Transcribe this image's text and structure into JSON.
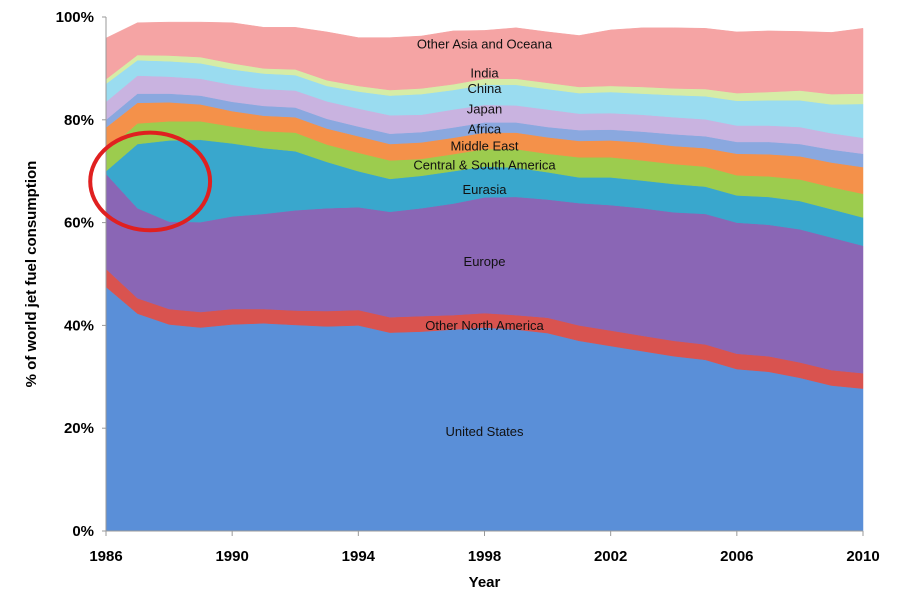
{
  "chart_data": {
    "type": "area",
    "stacked": true,
    "percent": true,
    "xlabel": "Year",
    "ylabel": "% of world jet fuel consumption",
    "x": [
      1986,
      1987,
      1988,
      1989,
      1990,
      1991,
      1992,
      1993,
      1994,
      1995,
      1996,
      1997,
      1998,
      1999,
      2000,
      2001,
      2002,
      2003,
      2004,
      2005,
      2006,
      2007,
      2008,
      2009,
      2010
    ],
    "x_ticks": [
      1986,
      1990,
      1994,
      1998,
      2002,
      2006,
      2010
    ],
    "x_tick_labels": [
      "1986",
      "1990",
      "1994",
      "1998",
      "2002",
      "2006",
      "2010"
    ],
    "y_ticks": [
      0,
      20,
      40,
      60,
      80,
      100
    ],
    "y_tick_labels": [
      "0%",
      "20%",
      "40%",
      "60%",
      "80%",
      "100%"
    ],
    "ylim": [
      0,
      100
    ],
    "grid": false,
    "series": [
      {
        "name": "United States",
        "color": "#5a8fd8",
        "values": [
          47.5,
          42.3,
          40.2,
          39.6,
          40.2,
          40.4,
          40.1,
          39.8,
          40.0,
          38.6,
          38.8,
          39.2,
          39.6,
          39.2,
          38.5,
          37.0,
          36.0,
          35.0,
          34.0,
          33.3,
          31.5,
          31.0,
          29.8,
          28.3,
          27.7
        ]
      },
      {
        "name": "Other North America",
        "color": "#d9534f",
        "values": [
          3.5,
          3.0,
          3.0,
          3.0,
          3.0,
          2.8,
          2.8,
          3.0,
          3.0,
          3.0,
          3.0,
          2.8,
          2.8,
          2.8,
          3.0,
          3.0,
          3.0,
          3.0,
          3.0,
          3.0,
          3.0,
          3.0,
          3.0,
          3.0,
          3.0
        ]
      },
      {
        "name": "Europe",
        "color": "#8a66b5",
        "values": [
          18.5,
          17.5,
          17.0,
          17.5,
          18.0,
          18.5,
          19.5,
          20.0,
          20.0,
          20.5,
          21.0,
          21.7,
          22.5,
          23.0,
          23.0,
          23.8,
          24.4,
          24.8,
          25.0,
          25.4,
          25.5,
          25.6,
          25.9,
          25.8,
          24.8
        ]
      },
      {
        "name": "Eurasia",
        "color": "#39a7cd",
        "values": [
          0.5,
          12.5,
          15.8,
          16.0,
          14.2,
          12.8,
          11.5,
          9.0,
          7.0,
          6.4,
          6.3,
          6.3,
          6.0,
          5.7,
          5.3,
          5.0,
          5.4,
          5.4,
          5.5,
          5.3,
          5.3,
          5.4,
          5.5,
          5.5,
          5.5
        ]
      },
      {
        "name": "Central & South America",
        "color": "#9ccc4e",
        "values": [
          4.0,
          4.0,
          3.7,
          3.6,
          3.3,
          3.3,
          3.6,
          3.4,
          3.6,
          3.6,
          3.3,
          3.3,
          3.4,
          3.6,
          3.6,
          3.9,
          3.9,
          3.9,
          3.9,
          3.9,
          3.9,
          4.0,
          4.2,
          4.3,
          4.6
        ]
      },
      {
        "name": "Middle East",
        "color": "#f4914a",
        "values": [
          4.5,
          4.0,
          3.7,
          3.3,
          3.0,
          3.0,
          3.0,
          3.1,
          3.2,
          3.2,
          3.2,
          3.2,
          3.2,
          3.2,
          3.2,
          3.2,
          3.3,
          3.5,
          3.5,
          3.6,
          4.2,
          4.3,
          4.5,
          4.8,
          5.2
        ]
      },
      {
        "name": "Africa",
        "color": "#8aa8df",
        "values": [
          1.5,
          1.8,
          1.7,
          1.7,
          1.8,
          1.9,
          1.9,
          1.9,
          1.9,
          2.0,
          2.0,
          2.0,
          2.0,
          2.0,
          2.0,
          2.1,
          2.1,
          2.1,
          2.3,
          2.3,
          2.3,
          2.4,
          2.4,
          2.5,
          2.6
        ]
      },
      {
        "name": "Japan",
        "color": "#c9b3e0",
        "values": [
          3.5,
          3.5,
          3.3,
          3.3,
          3.3,
          3.3,
          3.3,
          3.4,
          3.5,
          3.6,
          3.4,
          3.5,
          3.4,
          3.3,
          3.4,
          3.2,
          3.2,
          3.3,
          3.3,
          3.3,
          3.2,
          3.2,
          3.3,
          3.2,
          3.1
        ]
      },
      {
        "name": "China",
        "color": "#9adcf0",
        "values": [
          3.5,
          3.0,
          3.0,
          3.0,
          3.0,
          3.0,
          3.0,
          3.0,
          3.3,
          3.8,
          4.0,
          3.8,
          3.9,
          4.0,
          4.0,
          4.0,
          4.1,
          4.1,
          4.3,
          4.5,
          4.8,
          4.9,
          5.2,
          5.6,
          6.6
        ]
      },
      {
        "name": "India",
        "color": "#d6eca6",
        "values": [
          0.9,
          1.0,
          1.1,
          1.2,
          1.2,
          1.0,
          1.1,
          1.1,
          1.1,
          1.1,
          1.1,
          1.1,
          1.2,
          1.2,
          1.2,
          1.2,
          1.2,
          1.3,
          1.3,
          1.4,
          1.5,
          1.6,
          1.9,
          2.0,
          2.0
        ]
      },
      {
        "name": "Other Asia and Oceana",
        "color": "#f5a4a4",
        "values": [
          8.0,
          6.3,
          6.5,
          6.8,
          7.9,
          8.0,
          8.2,
          9.4,
          9.4,
          10.2,
          10.2,
          10.4,
          9.4,
          9.9,
          9.9,
          10.0,
          10.9,
          11.5,
          11.8,
          11.8,
          11.9,
          11.9,
          11.5,
          12.0,
          12.7
        ]
      }
    ],
    "labels": [
      {
        "text": "United States",
        "x": 1998.0,
        "y": 19.5
      },
      {
        "text": "Other North America",
        "x": 1998.0,
        "y": 40.1
      },
      {
        "text": "Europe",
        "x": 1998.0,
        "y": 52.5
      },
      {
        "text": "Eurasia",
        "x": 1998.0,
        "y": 66.5
      },
      {
        "text": "Central & South America",
        "x": 1998.0,
        "y": 71.3
      },
      {
        "text": "Middle East",
        "x": 1998.0,
        "y": 75.0
      },
      {
        "text": "Africa",
        "x": 1998.0,
        "y": 78.3
      },
      {
        "text": "Japan",
        "x": 1998.0,
        "y": 82.2
      },
      {
        "text": "China",
        "x": 1998.0,
        "y": 86.2
      },
      {
        "text": "India",
        "x": 1998.0,
        "y": 89.2
      },
      {
        "text": "Other Asia and Oceana",
        "x": 1998.0,
        "y": 94.8
      }
    ],
    "annotation": {
      "shape": "ellipse",
      "color": "#e02020",
      "x_center": 1987.4,
      "y_center": 68.0,
      "x_radius": 1.9,
      "y_radius": 9.5
    }
  }
}
